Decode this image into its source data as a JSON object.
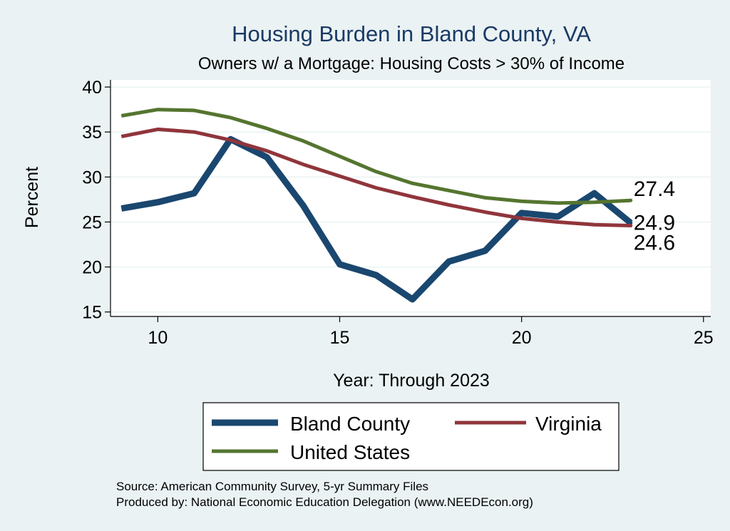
{
  "chart_data": {
    "type": "line",
    "title": "Housing Burden in Bland County, VA",
    "subtitle": "Owners w/ a Mortgage: Housing Costs > 30% of Income",
    "xlabel": "Year: Through 2023",
    "ylabel": "Percent",
    "xlim": [
      8.7,
      25.2
    ],
    "ylim": [
      14.5,
      40.8
    ],
    "xticks": [
      10,
      15,
      20,
      25
    ],
    "yticks": [
      15,
      20,
      25,
      30,
      35,
      40
    ],
    "grid": true,
    "legend_position": "bottom",
    "x": [
      9,
      10,
      11,
      12,
      13,
      14,
      15,
      16,
      17,
      18,
      19,
      20,
      21,
      22,
      23
    ],
    "series": [
      {
        "name": "Bland County",
        "color": "#1a476f",
        "values": [
          26.5,
          27.2,
          28.2,
          34.2,
          32.2,
          26.8,
          20.3,
          19.1,
          16.4,
          20.6,
          21.8,
          26.0,
          25.6,
          28.2,
          24.9
        ],
        "end_label": "24.9"
      },
      {
        "name": "Virginia",
        "color": "#90353b",
        "values": [
          34.5,
          35.3,
          35.0,
          34.1,
          32.9,
          31.4,
          30.1,
          28.8,
          27.8,
          26.9,
          26.1,
          25.4,
          25.0,
          24.7,
          24.6
        ],
        "end_label": "24.6"
      },
      {
        "name": "United States",
        "color": "#55752f",
        "values": [
          36.8,
          37.5,
          37.4,
          36.6,
          35.4,
          34.0,
          32.3,
          30.6,
          29.3,
          28.5,
          27.7,
          27.3,
          27.1,
          27.2,
          27.4
        ],
        "end_label": "27.4"
      }
    ]
  },
  "source_lines": [
    "Source: American Community Survey, 5-yr Summary Files",
    "Produced by: National Economic Education Delegation (www.NEEDEcon.org)"
  ]
}
